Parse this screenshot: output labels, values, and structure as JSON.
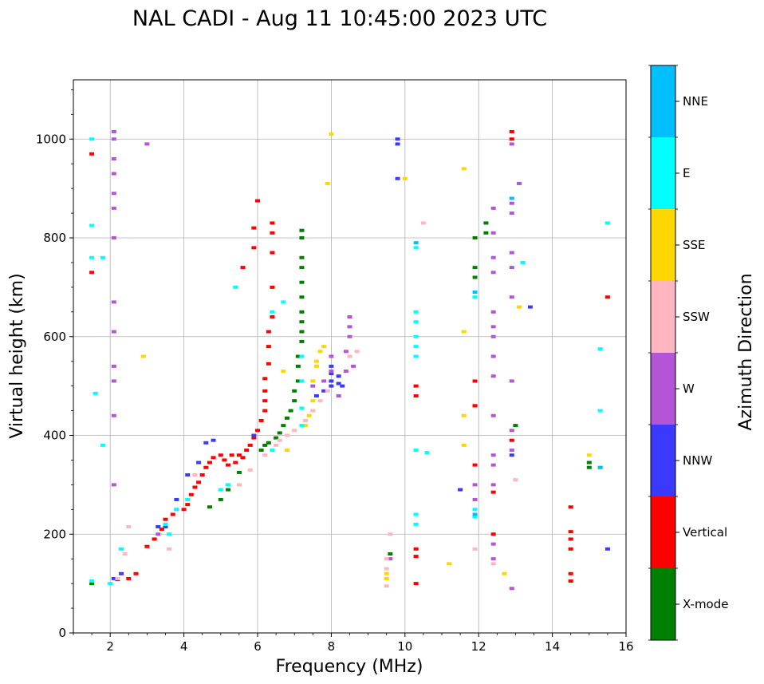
{
  "chart_data": {
    "type": "scatter",
    "title": "NAL CADI - Aug 11 10:45:00 2023 UTC",
    "xlabel": "Frequency (MHz)",
    "ylabel": "Virtual height (km)",
    "xlim": [
      1,
      16
    ],
    "ylim": [
      0,
      1120
    ],
    "xticks": [
      2,
      4,
      6,
      8,
      10,
      12,
      14,
      16
    ],
    "yticks": [
      0,
      200,
      400,
      600,
      800,
      1000
    ],
    "grid": true,
    "colorbar": {
      "label": "Azimuth Direction",
      "categories": [
        {
          "name": "X-mode",
          "color": "#008000"
        },
        {
          "name": "Vertical",
          "color": "#ff0000"
        },
        {
          "name": "NNW",
          "color": "#3a3aff"
        },
        {
          "name": "W",
          "color": "#b455d6"
        },
        {
          "name": "SSW",
          "color": "#ffb6c1"
        },
        {
          "name": "SSE",
          "color": "#ffd700"
        },
        {
          "name": "E",
          "color": "#00ffff"
        },
        {
          "name": "NNE",
          "color": "#00bfff"
        }
      ]
    },
    "series": [
      {
        "name": "X-mode",
        "points": [
          [
            1.5,
            100
          ],
          [
            2.2,
            108
          ],
          [
            4.7,
            255
          ],
          [
            5.0,
            270
          ],
          [
            5.2,
            290
          ],
          [
            5.5,
            325
          ],
          [
            6.1,
            370
          ],
          [
            6.2,
            380
          ],
          [
            6.3,
            385
          ],
          [
            6.5,
            395
          ],
          [
            6.6,
            405
          ],
          [
            6.7,
            420
          ],
          [
            6.8,
            435
          ],
          [
            6.9,
            450
          ],
          [
            7.0,
            470
          ],
          [
            7.0,
            490
          ],
          [
            7.1,
            510
          ],
          [
            7.1,
            540
          ],
          [
            7.1,
            560
          ],
          [
            7.2,
            590
          ],
          [
            7.2,
            610
          ],
          [
            7.2,
            630
          ],
          [
            7.2,
            650
          ],
          [
            7.2,
            680
          ],
          [
            7.2,
            710
          ],
          [
            7.2,
            740
          ],
          [
            7.2,
            760
          ],
          [
            7.2,
            800
          ],
          [
            7.2,
            815
          ],
          [
            9.6,
            160
          ],
          [
            11.9,
            460
          ],
          [
            11.9,
            720
          ],
          [
            11.9,
            740
          ],
          [
            11.9,
            800
          ],
          [
            12.2,
            810
          ],
          [
            12.2,
            830
          ],
          [
            13.0,
            420
          ],
          [
            15.0,
            335
          ],
          [
            15.0,
            345
          ]
        ]
      },
      {
        "name": "Vertical",
        "points": [
          [
            1.5,
            730
          ],
          [
            1.5,
            970
          ],
          [
            2.5,
            110
          ],
          [
            2.7,
            120
          ],
          [
            3.0,
            175
          ],
          [
            3.2,
            190
          ],
          [
            3.4,
            210
          ],
          [
            3.5,
            230
          ],
          [
            3.7,
            240
          ],
          [
            4.0,
            250
          ],
          [
            4.1,
            260
          ],
          [
            4.2,
            280
          ],
          [
            4.3,
            295
          ],
          [
            4.4,
            305
          ],
          [
            4.5,
            320
          ],
          [
            4.6,
            335
          ],
          [
            4.7,
            345
          ],
          [
            4.8,
            355
          ],
          [
            5.0,
            360
          ],
          [
            5.1,
            350
          ],
          [
            5.2,
            340
          ],
          [
            5.3,
            360
          ],
          [
            5.4,
            345
          ],
          [
            5.5,
            360
          ],
          [
            5.6,
            355
          ],
          [
            5.7,
            370
          ],
          [
            5.8,
            380
          ],
          [
            5.9,
            395
          ],
          [
            6.0,
            410
          ],
          [
            6.1,
            430
          ],
          [
            6.2,
            450
          ],
          [
            6.2,
            470
          ],
          [
            6.2,
            490
          ],
          [
            6.2,
            515
          ],
          [
            6.3,
            545
          ],
          [
            6.3,
            580
          ],
          [
            6.3,
            610
          ],
          [
            6.4,
            640
          ],
          [
            6.4,
            700
          ],
          [
            6.4,
            770
          ],
          [
            6.4,
            810
          ],
          [
            6.4,
            830
          ],
          [
            6.0,
            875
          ],
          [
            5.9,
            780
          ],
          [
            5.9,
            820
          ],
          [
            5.6,
            740
          ],
          [
            10.3,
            100
          ],
          [
            10.3,
            155
          ],
          [
            10.3,
            170
          ],
          [
            10.3,
            480
          ],
          [
            10.3,
            500
          ],
          [
            11.9,
            340
          ],
          [
            11.9,
            460
          ],
          [
            11.9,
            510
          ],
          [
            12.4,
            200
          ],
          [
            12.4,
            285
          ],
          [
            12.9,
            390
          ],
          [
            12.9,
            1000
          ],
          [
            12.9,
            1015
          ],
          [
            14.5,
            105
          ],
          [
            14.5,
            120
          ],
          [
            14.5,
            170
          ],
          [
            14.5,
            190
          ],
          [
            14.5,
            205
          ],
          [
            14.5,
            255
          ],
          [
            15.5,
            680
          ]
        ]
      },
      {
        "name": "NNW",
        "points": [
          [
            2.1,
            110
          ],
          [
            2.3,
            120
          ],
          [
            3.3,
            215
          ],
          [
            3.5,
            215
          ],
          [
            3.8,
            270
          ],
          [
            4.1,
            320
          ],
          [
            4.4,
            345
          ],
          [
            4.6,
            385
          ],
          [
            4.8,
            390
          ],
          [
            5.9,
            400
          ],
          [
            7.6,
            480
          ],
          [
            7.8,
            490
          ],
          [
            8.0,
            500
          ],
          [
            8.0,
            510
          ],
          [
            8.0,
            525
          ],
          [
            8.0,
            540
          ],
          [
            8.2,
            520
          ],
          [
            8.2,
            505
          ],
          [
            8.3,
            500
          ],
          [
            9.8,
            920
          ],
          [
            9.8,
            990
          ],
          [
            9.8,
            1000
          ],
          [
            11.5,
            290
          ],
          [
            12.9,
            360
          ],
          [
            13.4,
            660
          ],
          [
            15.5,
            170
          ]
        ]
      },
      {
        "name": "W",
        "points": [
          [
            2.1,
            300
          ],
          [
            2.1,
            440
          ],
          [
            2.1,
            510
          ],
          [
            2.1,
            540
          ],
          [
            2.1,
            610
          ],
          [
            2.1,
            670
          ],
          [
            2.1,
            800
          ],
          [
            2.1,
            860
          ],
          [
            2.1,
            890
          ],
          [
            2.1,
            930
          ],
          [
            2.1,
            960
          ],
          [
            2.1,
            1000
          ],
          [
            2.1,
            1015
          ],
          [
            3.0,
            990
          ],
          [
            3.3,
            200
          ],
          [
            3.8,
            250
          ],
          [
            7.5,
            500
          ],
          [
            7.8,
            510
          ],
          [
            8.0,
            530
          ],
          [
            8.0,
            560
          ],
          [
            8.2,
            480
          ],
          [
            8.4,
            530
          ],
          [
            8.4,
            570
          ],
          [
            8.5,
            600
          ],
          [
            8.5,
            620
          ],
          [
            8.5,
            640
          ],
          [
            8.6,
            540
          ],
          [
            9.6,
            150
          ],
          [
            11.9,
            270
          ],
          [
            11.9,
            300
          ],
          [
            12.4,
            150
          ],
          [
            12.4,
            180
          ],
          [
            12.4,
            300
          ],
          [
            12.4,
            340
          ],
          [
            12.4,
            360
          ],
          [
            12.4,
            440
          ],
          [
            12.4,
            520
          ],
          [
            12.4,
            560
          ],
          [
            12.4,
            600
          ],
          [
            12.4,
            620
          ],
          [
            12.4,
            650
          ],
          [
            12.4,
            730
          ],
          [
            12.4,
            760
          ],
          [
            12.4,
            810
          ],
          [
            12.4,
            860
          ],
          [
            12.9,
            90
          ],
          [
            12.9,
            370
          ],
          [
            12.9,
            410
          ],
          [
            12.9,
            510
          ],
          [
            12.9,
            680
          ],
          [
            12.9,
            740
          ],
          [
            12.9,
            770
          ],
          [
            12.9,
            850
          ],
          [
            12.9,
            870
          ],
          [
            12.9,
            990
          ],
          [
            13.1,
            910
          ]
        ]
      },
      {
        "name": "SSW",
        "points": [
          [
            2.2,
            110
          ],
          [
            2.4,
            160
          ],
          [
            2.5,
            215
          ],
          [
            3.6,
            170
          ],
          [
            4.3,
            320
          ],
          [
            5.5,
            300
          ],
          [
            5.8,
            330
          ],
          [
            6.2,
            360
          ],
          [
            6.5,
            380
          ],
          [
            6.6,
            390
          ],
          [
            6.8,
            400
          ],
          [
            7.0,
            410
          ],
          [
            7.3,
            430
          ],
          [
            7.5,
            450
          ],
          [
            7.7,
            470
          ],
          [
            7.9,
            490
          ],
          [
            8.5,
            560
          ],
          [
            8.7,
            570
          ],
          [
            9.5,
            95
          ],
          [
            9.5,
            130
          ],
          [
            9.5,
            150
          ],
          [
            9.6,
            200
          ],
          [
            11.9,
            170
          ],
          [
            12.4,
            140
          ],
          [
            13.0,
            310
          ],
          [
            10.5,
            830
          ]
        ]
      },
      {
        "name": "SSE",
        "points": [
          [
            2.9,
            560
          ],
          [
            6.7,
            530
          ],
          [
            6.8,
            370
          ],
          [
            7.3,
            420
          ],
          [
            7.4,
            440
          ],
          [
            7.5,
            470
          ],
          [
            7.5,
            510
          ],
          [
            7.6,
            540
          ],
          [
            7.6,
            550
          ],
          [
            7.7,
            570
          ],
          [
            7.8,
            580
          ],
          [
            7.9,
            910
          ],
          [
            8.0,
            1010
          ],
          [
            9.5,
            110
          ],
          [
            9.5,
            120
          ],
          [
            10.0,
            920
          ],
          [
            11.2,
            140
          ],
          [
            11.6,
            380
          ],
          [
            11.6,
            440
          ],
          [
            11.6,
            610
          ],
          [
            11.6,
            940
          ],
          [
            12.7,
            120
          ],
          [
            13.1,
            660
          ],
          [
            15.0,
            360
          ]
        ]
      },
      {
        "name": "E",
        "points": [
          [
            1.5,
            105
          ],
          [
            1.6,
            485
          ],
          [
            1.5,
            760
          ],
          [
            1.5,
            825
          ],
          [
            1.5,
            1000
          ],
          [
            1.8,
            380
          ],
          [
            1.8,
            760
          ],
          [
            2.0,
            100
          ],
          [
            2.3,
            170
          ],
          [
            3.5,
            220
          ],
          [
            3.6,
            200
          ],
          [
            3.8,
            250
          ],
          [
            4.1,
            270
          ],
          [
            5.0,
            290
          ],
          [
            5.2,
            300
          ],
          [
            5.4,
            700
          ],
          [
            6.4,
            370
          ],
          [
            6.4,
            650
          ],
          [
            6.7,
            670
          ],
          [
            7.2,
            420
          ],
          [
            7.2,
            455
          ],
          [
            7.2,
            510
          ],
          [
            7.2,
            560
          ],
          [
            10.3,
            220
          ],
          [
            10.3,
            240
          ],
          [
            10.3,
            370
          ],
          [
            10.3,
            560
          ],
          [
            10.3,
            580
          ],
          [
            10.3,
            600
          ],
          [
            10.3,
            630
          ],
          [
            10.3,
            650
          ],
          [
            10.3,
            780
          ],
          [
            10.6,
            365
          ],
          [
            11.9,
            235
          ],
          [
            11.9,
            250
          ],
          [
            11.9,
            680
          ],
          [
            13.2,
            750
          ],
          [
            15.3,
            450
          ],
          [
            15.3,
            575
          ],
          [
            15.3,
            335
          ],
          [
            15.5,
            830
          ]
        ]
      },
      {
        "name": "NNE",
        "points": [
          [
            11.9,
            240
          ],
          [
            11.9,
            690
          ],
          [
            12.9,
            880
          ],
          [
            10.3,
            790
          ],
          [
            15.3,
            335
          ]
        ]
      }
    ]
  }
}
